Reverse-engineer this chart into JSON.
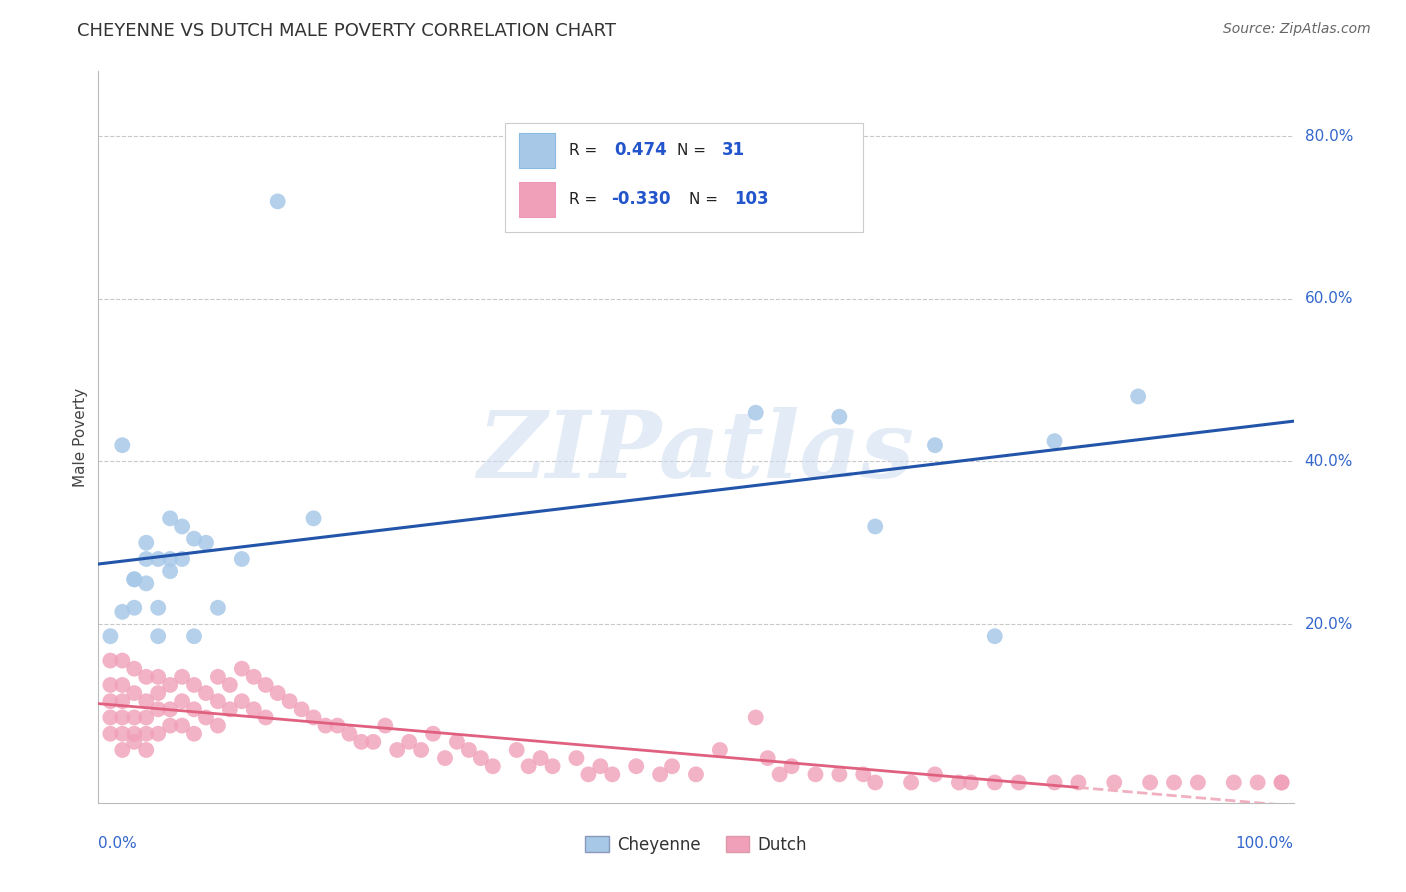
{
  "title": "CHEYENNE VS DUTCH MALE POVERTY CORRELATION CHART",
  "source": "Source: ZipAtlas.com",
  "ylabel": "Male Poverty",
  "xlim": [
    0.0,
    1.0
  ],
  "ylim": [
    -0.02,
    0.88
  ],
  "cheyenne_color": "#A8C8E8",
  "dutch_color": "#F0A0B8",
  "cheyenne_line_color": "#2255AA",
  "dutch_line_color": "#E06080",
  "dutch_line_dashed_color": "#F0B0C0",
  "background_color": "#FFFFFF",
  "watermark_text": "ZIPatlas",
  "watermark_color": "#D0DFF0",
  "cheyenne_x": [
    0.01,
    0.02,
    0.02,
    0.03,
    0.03,
    0.03,
    0.04,
    0.04,
    0.04,
    0.05,
    0.05,
    0.05,
    0.06,
    0.06,
    0.06,
    0.07,
    0.07,
    0.08,
    0.08,
    0.09,
    0.1,
    0.12,
    0.15,
    0.18,
    0.55,
    0.62,
    0.65,
    0.7,
    0.75,
    0.8,
    0.87
  ],
  "cheyenne_y": [
    0.185,
    0.42,
    0.215,
    0.255,
    0.255,
    0.22,
    0.28,
    0.3,
    0.25,
    0.22,
    0.28,
    0.185,
    0.33,
    0.28,
    0.265,
    0.32,
    0.28,
    0.305,
    0.185,
    0.3,
    0.22,
    0.28,
    0.72,
    0.33,
    0.46,
    0.455,
    0.32,
    0.42,
    0.185,
    0.425,
    0.48
  ],
  "dutch_x": [
    0.01,
    0.01,
    0.01,
    0.01,
    0.01,
    0.02,
    0.02,
    0.02,
    0.02,
    0.02,
    0.02,
    0.03,
    0.03,
    0.03,
    0.03,
    0.03,
    0.04,
    0.04,
    0.04,
    0.04,
    0.04,
    0.05,
    0.05,
    0.05,
    0.05,
    0.06,
    0.06,
    0.06,
    0.07,
    0.07,
    0.07,
    0.08,
    0.08,
    0.08,
    0.09,
    0.09,
    0.1,
    0.1,
    0.1,
    0.11,
    0.11,
    0.12,
    0.12,
    0.13,
    0.13,
    0.14,
    0.14,
    0.15,
    0.16,
    0.17,
    0.18,
    0.19,
    0.2,
    0.21,
    0.22,
    0.23,
    0.24,
    0.25,
    0.26,
    0.27,
    0.28,
    0.29,
    0.3,
    0.31,
    0.32,
    0.33,
    0.35,
    0.36,
    0.37,
    0.38,
    0.4,
    0.41,
    0.42,
    0.43,
    0.45,
    0.47,
    0.48,
    0.5,
    0.52,
    0.55,
    0.56,
    0.57,
    0.58,
    0.6,
    0.62,
    0.64,
    0.65,
    0.68,
    0.7,
    0.72,
    0.73,
    0.75,
    0.77,
    0.8,
    0.82,
    0.85,
    0.88,
    0.9,
    0.92,
    0.95,
    0.97,
    0.99,
    0.99
  ],
  "dutch_y": [
    0.155,
    0.125,
    0.105,
    0.085,
    0.065,
    0.155,
    0.125,
    0.105,
    0.085,
    0.065,
    0.045,
    0.145,
    0.115,
    0.085,
    0.065,
    0.055,
    0.135,
    0.105,
    0.085,
    0.065,
    0.045,
    0.135,
    0.115,
    0.095,
    0.065,
    0.125,
    0.095,
    0.075,
    0.135,
    0.105,
    0.075,
    0.125,
    0.095,
    0.065,
    0.115,
    0.085,
    0.135,
    0.105,
    0.075,
    0.125,
    0.095,
    0.145,
    0.105,
    0.135,
    0.095,
    0.125,
    0.085,
    0.115,
    0.105,
    0.095,
    0.085,
    0.075,
    0.075,
    0.065,
    0.055,
    0.055,
    0.075,
    0.045,
    0.055,
    0.045,
    0.065,
    0.035,
    0.055,
    0.045,
    0.035,
    0.025,
    0.045,
    0.025,
    0.035,
    0.025,
    0.035,
    0.015,
    0.025,
    0.015,
    0.025,
    0.015,
    0.025,
    0.015,
    0.045,
    0.085,
    0.035,
    0.015,
    0.025,
    0.015,
    0.015,
    0.015,
    0.005,
    0.005,
    0.015,
    0.005,
    0.005,
    0.005,
    0.005,
    0.005,
    0.005,
    0.005,
    0.005,
    0.005,
    0.005,
    0.005,
    0.005,
    0.005,
    0.005
  ]
}
